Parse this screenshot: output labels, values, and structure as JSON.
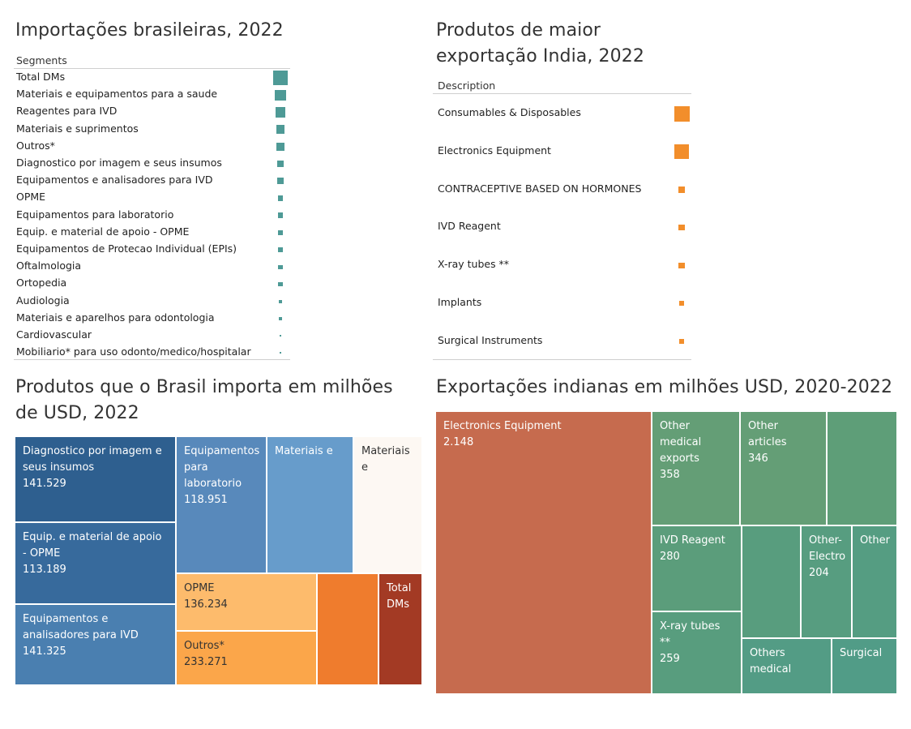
{
  "chart_data": [
    {
      "type": "table",
      "title": "Importações brasileiras, 2022",
      "column_header": "Segments",
      "color": "#4e9a96",
      "rows": [
        {
          "label": "Total DMs",
          "value": 1.0
        },
        {
          "label": "Materiais e equipamentos para a saude",
          "value": 0.55
        },
        {
          "label": "Reagentes para IVD",
          "value": 0.52
        },
        {
          "label": "Materiais e suprimentos",
          "value": 0.36
        },
        {
          "label": "Outros*",
          "value": 0.28
        },
        {
          "label": "Diagnostico por imagem e seus insumos",
          "value": 0.17
        },
        {
          "label": "Equipamentos e analisadores para IVD",
          "value": 0.17
        },
        {
          "label": "OPME",
          "value": 0.15
        },
        {
          "label": "Equipamentos para laboratorio",
          "value": 0.14
        },
        {
          "label": "Equip. e material de apoio - OPME",
          "value": 0.13
        },
        {
          "label": "Equipamentos de Protecao Individual (EPIs)",
          "value": 0.1
        },
        {
          "label": "Oftalmologia",
          "value": 0.09
        },
        {
          "label": "Ortopedia",
          "value": 0.08
        },
        {
          "label": "Audiologia",
          "value": 0.05
        },
        {
          "label": "Materiais e aparelhos para odontologia",
          "value": 0.045
        },
        {
          "label": "Cardiovascular",
          "value": 0.02
        },
        {
          "label": "Mobiliario* para uso odonto/medico/hospitalar",
          "value": 0.01
        }
      ]
    },
    {
      "type": "table",
      "title": "Produtos de maior exportação India, 2022",
      "column_header": "Description",
      "color": "#f28e2b",
      "rows": [
        {
          "label": "Consumables & Disposables",
          "value": 1.0
        },
        {
          "label": "Electronics Equipment",
          "value": 0.9
        },
        {
          "label": "CONTRACEPTIVE BASED ON HORMONES",
          "value": 0.17
        },
        {
          "label": "IVD Reagent",
          "value": 0.16
        },
        {
          "label": "X-ray tubes **",
          "value": 0.15
        },
        {
          "label": "Implants",
          "value": 0.13
        },
        {
          "label": "Surgical Instruments",
          "value": 0.1
        }
      ]
    },
    {
      "type": "treemap",
      "title": "Produtos que o Brasil importa em milhões de USD, 2022",
      "tiles": [
        {
          "label": "Diagnostico por imagem e seus insumos",
          "value_label": "141.529",
          "color": "#2e5f8f",
          "text_color": "#ffffff"
        },
        {
          "label": "Equip. e material de apoio - OPME",
          "value_label": "113.189",
          "color": "#376a9c",
          "text_color": "#ffffff"
        },
        {
          "label": "Equipamentos e analisadores para IVD",
          "value_label": "141.325",
          "color": "#4a7fb0",
          "text_color": "#ffffff"
        },
        {
          "label": "Equipamentos para laboratorio",
          "value_label": "118.951",
          "color": "#5889bb",
          "text_color": "#ffffff"
        },
        {
          "label": "Materiais e",
          "value_label": "",
          "color": "#679ccb",
          "text_color": "#ffffff"
        },
        {
          "label": "Materiais e",
          "value_label": "",
          "color": "#fdf8f3",
          "text_color": "#333333"
        },
        {
          "label": "OPME",
          "value_label": "136.234",
          "color": "#fdbb6c",
          "text_color": "#333333"
        },
        {
          "label": "Outros*",
          "value_label": "233.271",
          "color": "#fba64a",
          "text_color": "#333333"
        },
        {
          "label": "",
          "value_label": "",
          "color": "#ef7c2d",
          "text_color": "#ffffff"
        },
        {
          "label": "Total DMs",
          "value_label": "",
          "color": "#a33a24",
          "text_color": "#ffffff"
        }
      ]
    },
    {
      "type": "treemap",
      "title": "Exportações indianas em milhões USD, 2020-2022",
      "tiles": [
        {
          "label": "Electronics Equipment",
          "value_label": "2.148",
          "color": "#c66b4e",
          "text_color": "#ffffff"
        },
        {
          "label": "Other medical exports",
          "value_label": "358",
          "color": "#649e76",
          "text_color": "#ffffff"
        },
        {
          "label": "Other articles",
          "value_label": "346",
          "color": "#649e76",
          "text_color": "#ffffff"
        },
        {
          "label": "",
          "value_label": "",
          "color": "#5e9e78",
          "text_color": "#ffffff"
        },
        {
          "label": "IVD Reagent",
          "value_label": "280",
          "color": "#5b9d7b",
          "text_color": "#ffffff"
        },
        {
          "label": "",
          "value_label": "",
          "color": "#589d7e",
          "text_color": "#ffffff"
        },
        {
          "label": "Other-Electro",
          "value_label": "204",
          "color": "#579d80",
          "text_color": "#ffffff"
        },
        {
          "label": "Other",
          "value_label": "",
          "color": "#559d82",
          "text_color": "#ffffff"
        },
        {
          "label": "X-ray tubes **",
          "value_label": "259",
          "color": "#589d7e",
          "text_color": "#ffffff"
        },
        {
          "label": "Others medical",
          "value_label": "",
          "color": "#539c85",
          "text_color": "#ffffff"
        },
        {
          "label": "Surgical",
          "value_label": "",
          "color": "#519c87",
          "text_color": "#ffffff"
        }
      ]
    }
  ]
}
